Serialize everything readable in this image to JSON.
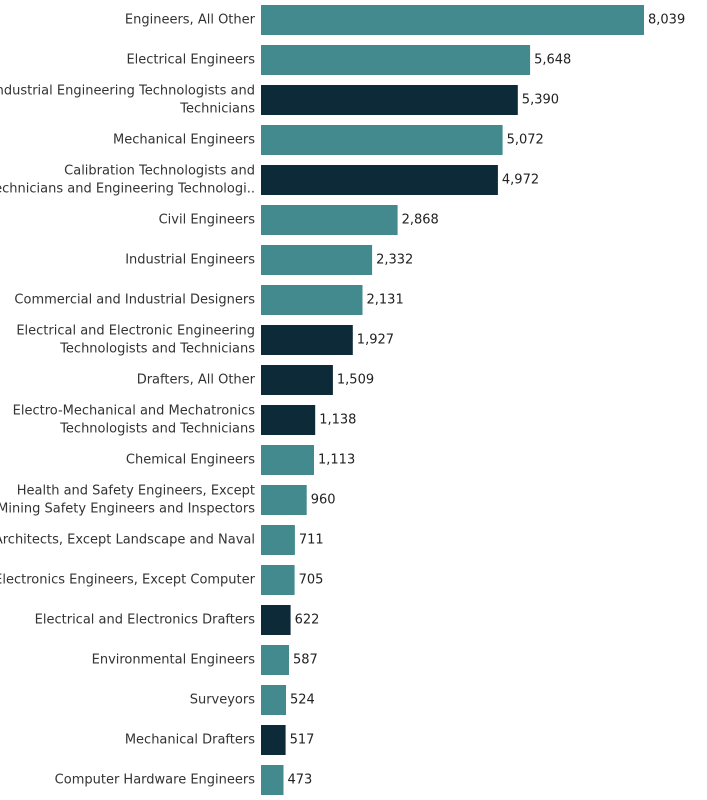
{
  "chart_data": {
    "type": "bar",
    "orientation": "horizontal",
    "title": "",
    "xlabel": "",
    "ylabel": "",
    "xlim": [
      0,
      8039
    ],
    "grid": false,
    "legend": "none",
    "colors": {
      "teal": "#438A8F",
      "navy": "#0C2A38"
    },
    "bars": [
      {
        "lines": [
          "Engineers, All Other"
        ],
        "value": 8039,
        "value_label": "8,039",
        "color": "teal"
      },
      {
        "lines": [
          "Electrical Engineers"
        ],
        "value": 5648,
        "value_label": "5,648",
        "color": "teal"
      },
      {
        "lines": [
          "Industrial Engineering Technologists and",
          "Technicians"
        ],
        "value": 5390,
        "value_label": "5,390",
        "color": "navy"
      },
      {
        "lines": [
          "Mechanical Engineers"
        ],
        "value": 5072,
        "value_label": "5,072",
        "color": "teal"
      },
      {
        "lines": [
          "Calibration Technologists and",
          "Technicians and Engineering Technologi.."
        ],
        "value": 4972,
        "value_label": "4,972",
        "color": "navy"
      },
      {
        "lines": [
          "Civil Engineers"
        ],
        "value": 2868,
        "value_label": "2,868",
        "color": "teal"
      },
      {
        "lines": [
          "Industrial Engineers"
        ],
        "value": 2332,
        "value_label": "2,332",
        "color": "teal"
      },
      {
        "lines": [
          "Commercial and Industrial Designers"
        ],
        "value": 2131,
        "value_label": "2,131",
        "color": "teal"
      },
      {
        "lines": [
          "Electrical and Electronic Engineering",
          "Technologists and Technicians"
        ],
        "value": 1927,
        "value_label": "1,927",
        "color": "navy"
      },
      {
        "lines": [
          "Drafters, All Other"
        ],
        "value": 1509,
        "value_label": "1,509",
        "color": "navy"
      },
      {
        "lines": [
          "Electro-Mechanical and Mechatronics",
          "Technologists and Technicians"
        ],
        "value": 1138,
        "value_label": "1,138",
        "color": "navy"
      },
      {
        "lines": [
          "Chemical Engineers"
        ],
        "value": 1113,
        "value_label": "1,113",
        "color": "teal"
      },
      {
        "lines": [
          "Health and Safety Engineers, Except",
          "Mining Safety Engineers and Inspectors"
        ],
        "value": 960,
        "value_label": "960",
        "color": "teal"
      },
      {
        "lines": [
          "Architects, Except Landscape and Naval"
        ],
        "value": 711,
        "value_label": "711",
        "color": "teal"
      },
      {
        "lines": [
          "Electronics Engineers, Except Computer"
        ],
        "value": 705,
        "value_label": "705",
        "color": "teal"
      },
      {
        "lines": [
          "Electrical and Electronics Drafters"
        ],
        "value": 622,
        "value_label": "622",
        "color": "navy"
      },
      {
        "lines": [
          "Environmental Engineers"
        ],
        "value": 587,
        "value_label": "587",
        "color": "teal"
      },
      {
        "lines": [
          "Surveyors"
        ],
        "value": 524,
        "value_label": "524",
        "color": "teal"
      },
      {
        "lines": [
          "Mechanical Drafters"
        ],
        "value": 517,
        "value_label": "517",
        "color": "navy"
      },
      {
        "lines": [
          "Computer Hardware Engineers"
        ],
        "value": 473,
        "value_label": "473",
        "color": "teal"
      }
    ]
  }
}
